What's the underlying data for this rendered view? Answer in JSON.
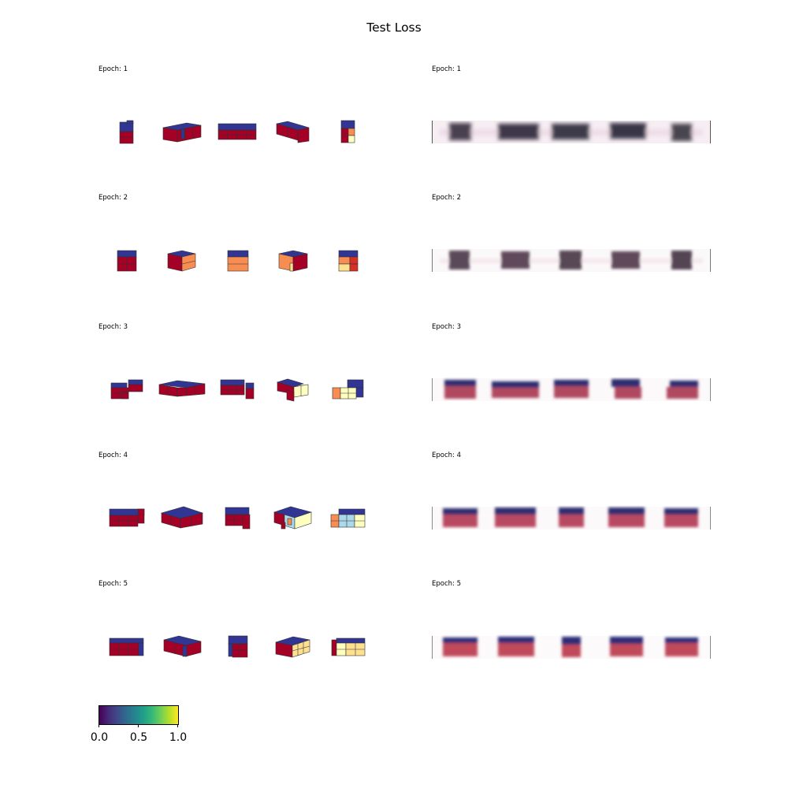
{
  "title": "Test Loss",
  "rows": [
    {
      "left_label": "Epoch: 1",
      "right_label": "Epoch: 1"
    },
    {
      "left_label": "Epoch: 2",
      "right_label": "Epoch: 2"
    },
    {
      "left_label": "Epoch: 3",
      "right_label": "Epoch: 3"
    },
    {
      "left_label": "Epoch: 4",
      "right_label": "Epoch: 4"
    },
    {
      "left_label": "Epoch: 5",
      "right_label": "Epoch: 5"
    }
  ],
  "colorbar": {
    "colormap": "viridis",
    "tick_labels": [
      "0.0",
      "0.5",
      "1.0"
    ]
  },
  "colors": {
    "voxel_red": "#a50026",
    "voxel_blue": "#313695",
    "voxel_orange": "#f88d52",
    "voxel_light_yellow": "#fee090",
    "voxel_pale_yellow": "#ffffbf",
    "voxel_light_blue": "#abd9e9",
    "voxel_red_orange": "#d73027"
  }
}
